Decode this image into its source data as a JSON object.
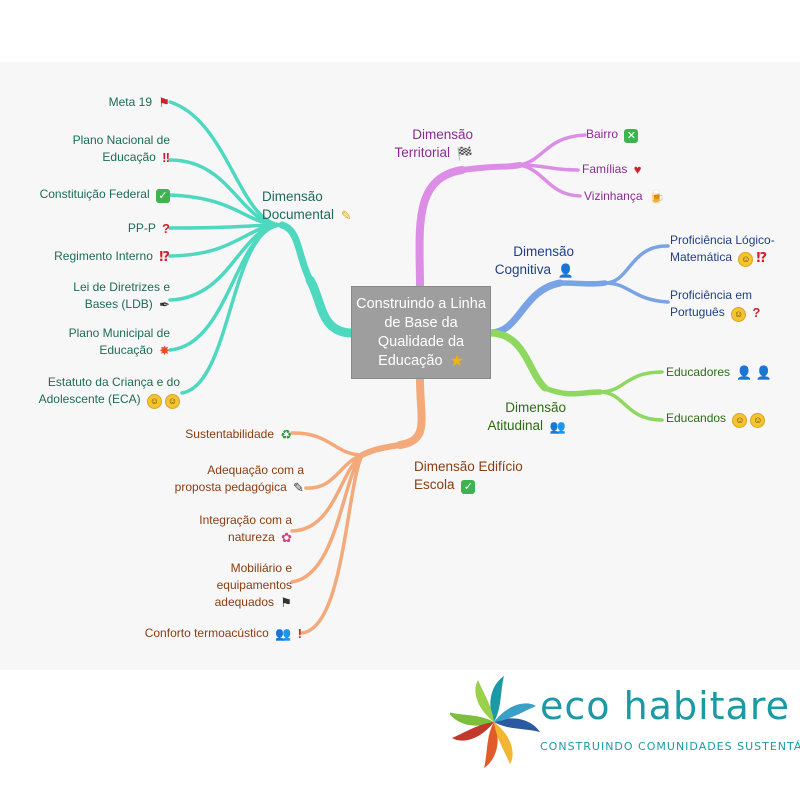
{
  "center": {
    "label": "Construindo a Linha de Base da Qualidade da Educação",
    "icon": "star-icon"
  },
  "branches": {
    "documental": {
      "label": "Dimensão Documental",
      "icon": "pencil-icon",
      "color": "#4fd8c0",
      "text_color": "#1d6b57",
      "items": [
        {
          "label": "Meta 19",
          "icon": "flag-icon"
        },
        {
          "label": "Plano Nacional de Educação",
          "icon": "double-exclamation-icon"
        },
        {
          "label": "Constituição Federal",
          "icon": "check-box-icon"
        },
        {
          "label": "PP-P",
          "icon": "question-icon"
        },
        {
          "label": "Regimento Interno",
          "icon": "exclamation-question-icon"
        },
        {
          "label": "Lei de Diretrizes e Bases (LDB)",
          "icon": "pen-icon"
        },
        {
          "label": "Plano Municipal de Educação",
          "icon": "collision-icon"
        },
        {
          "label": "Estatuto da Criança e do Adolescente (ECA)",
          "icon": "smiley-pair-icon"
        }
      ]
    },
    "territorial": {
      "label": "Dimensão Territorial",
      "icon": "checkered-flag-icon",
      "color": "#dc8ee6",
      "text_color": "#8a2b93",
      "items": [
        {
          "label": "Bairro",
          "icon": "cross-box-icon"
        },
        {
          "label": "Famílias",
          "icon": "heart-icon"
        },
        {
          "label": "Vizinhança",
          "icon": "beer-icon"
        }
      ]
    },
    "cognitiva": {
      "label": "Dimensão Cognitiva",
      "icon": "bust-silhouette-icon",
      "color": "#7aa3e6",
      "text_color": "#1f3f86",
      "items": [
        {
          "label": "Proficiência Lógico-Matemática",
          "icon": "smiley-exclamation-question-icon"
        },
        {
          "label": "Proficiência em Português",
          "icon": "smiley-question-icon"
        }
      ]
    },
    "atitudinal": {
      "label": "Dimensão Atitudinal",
      "icon": "busts-silhouette-icon",
      "color": "#8fd860",
      "text_color": "#2f6b16",
      "items": [
        {
          "label": "Educadores",
          "icon": "two-busts-icon"
        },
        {
          "label": "Educandos",
          "icon": "two-smileys-icon"
        }
      ]
    },
    "edificio": {
      "label": "Dimensão Edifício Escola",
      "icon": "check-box-icon",
      "color": "#f4a97a",
      "text_color": "#8a3d10",
      "items": [
        {
          "label": "Sustentabilidade",
          "icon": "recycle-icon"
        },
        {
          "label": "Adequação com a proposta pedagógica",
          "icon": "syringe-icon"
        },
        {
          "label": "Integração com a natureza",
          "icon": "bouquet-icon"
        },
        {
          "label": "Mobiliário e equipamentos adequados",
          "icon": "black-flag-icon"
        },
        {
          "label": "Conforto termoacústico",
          "icon": "busts-exclamation-icon"
        }
      ]
    }
  },
  "logo": {
    "title": "eco habitare",
    "tagline": "CONSTRUINDO COMUNIDADES SUSTENTÁVEIS",
    "colors": [
      "#1b9aa5",
      "#e05a2a",
      "#f2b632",
      "#7bbf3a",
      "#2c5aa0",
      "#c0392b"
    ]
  }
}
